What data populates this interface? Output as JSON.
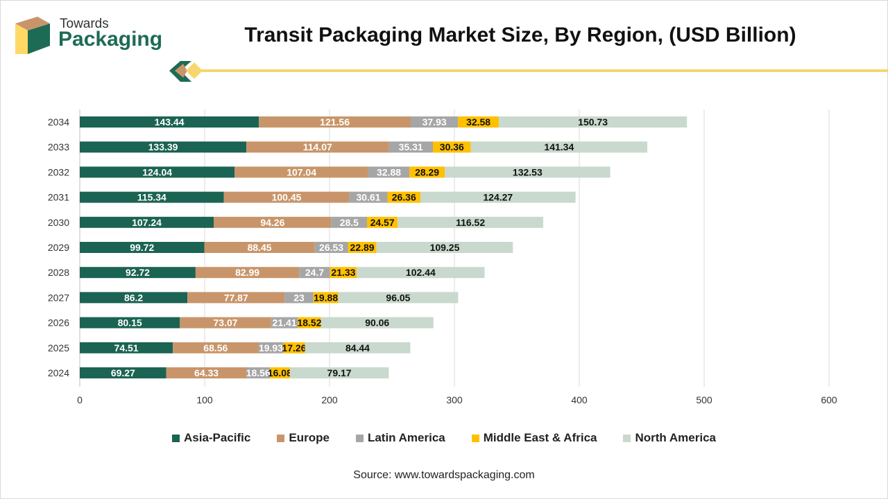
{
  "brand": {
    "line1": "Towards",
    "line2": "Packaging"
  },
  "title": "Transit Packaging Market Size, By Region, (USD Billion)",
  "source": "Source: www.towardspackaging.com",
  "colors": {
    "Asia-Pacific": "#1b6352",
    "Europe": "#c8956a",
    "Latin America": "#a6a6a6",
    "Middle East & Africa": "#ffc000",
    "North America": "#c9d9cd",
    "accent_yellow": "#f5d76e",
    "brand_green": "#1e6b55"
  },
  "chart_data": {
    "type": "bar",
    "orientation": "horizontal",
    "stacked": true,
    "title": "Transit Packaging Market Size, By Region, (USD Billion)",
    "categories": [
      "2024",
      "2025",
      "2026",
      "2027",
      "2028",
      "2029",
      "2030",
      "2031",
      "2032",
      "2033",
      "2034"
    ],
    "series": [
      {
        "name": "Asia-Pacific",
        "values": [
          69.27,
          74.51,
          80.15,
          86.2,
          92.72,
          99.72,
          107.24,
          115.34,
          124.04,
          133.39,
          143.44
        ]
      },
      {
        "name": "Europe",
        "values": [
          64.33,
          68.56,
          73.07,
          77.87,
          82.99,
          88.45,
          94.26,
          100.45,
          107.04,
          114.07,
          121.56
        ]
      },
      {
        "name": "Latin America",
        "values": [
          18.56,
          19.93,
          21.41,
          23,
          24.7,
          26.53,
          28.5,
          30.61,
          32.88,
          35.31,
          37.93
        ]
      },
      {
        "name": "Middle East & Africa",
        "values": [
          16.08,
          17.26,
          18.52,
          19.88,
          21.33,
          22.89,
          24.57,
          26.36,
          28.29,
          30.36,
          32.58
        ]
      },
      {
        "name": "North America",
        "values": [
          79.17,
          84.44,
          90.06,
          96.05,
          102.44,
          109.25,
          116.52,
          124.27,
          132.53,
          141.34,
          150.73
        ]
      }
    ],
    "xticks": [
      "0",
      "100",
      "200",
      "300",
      "400",
      "500",
      "600"
    ],
    "xlim": [
      0,
      600
    ],
    "grid": true,
    "legend": "bottom"
  }
}
